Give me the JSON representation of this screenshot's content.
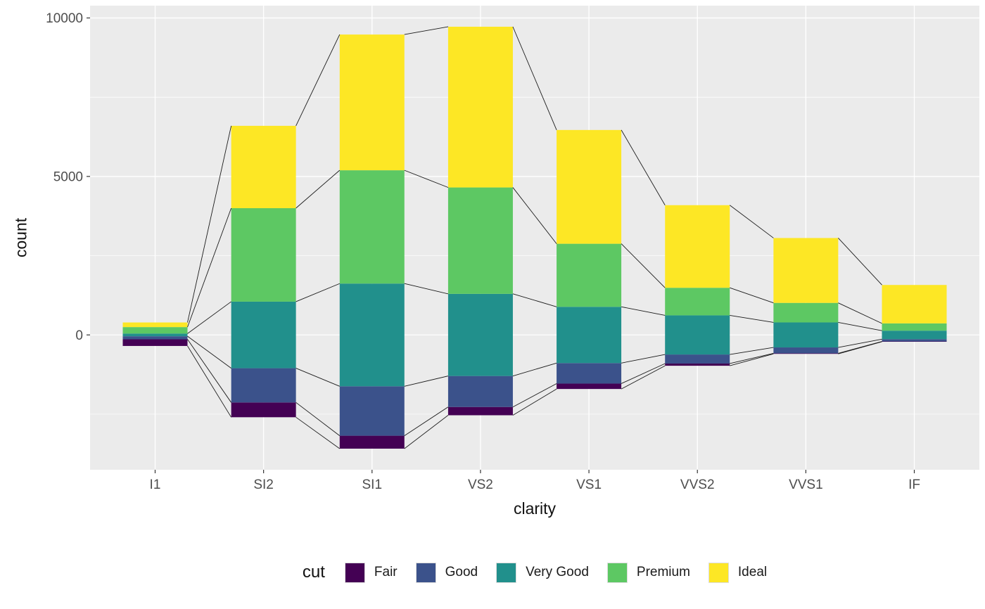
{
  "style": {
    "figure_bg": "#FFFFFF",
    "panel_bg": "#EBEBEB",
    "grid_major": "#FFFFFF",
    "grid_minor": "#FFFFFF",
    "connector_color": "#1A1A1A",
    "tick_mark_color": "#333333",
    "tick_text_color": "#4D4D4D",
    "title_text_color": "#111111"
  },
  "axes": {
    "x": {
      "title": "clarity",
      "tick_labels": [
        "I1",
        "SI2",
        "SI1",
        "VS2",
        "VS1",
        "VVS2",
        "VVS1",
        "IF"
      ]
    },
    "y": {
      "title": "count",
      "tick_labels": [
        "0",
        "5000",
        "10000"
      ],
      "tick_values": [
        0,
        5000,
        10000
      ],
      "minor": [
        -2500,
        2500,
        7500
      ],
      "min": -4254,
      "max": 10389
    }
  },
  "legend": {
    "title": "cut",
    "items": [
      {
        "label": "Fair",
        "color": "#440154"
      },
      {
        "label": "Good",
        "color": "#3B528B"
      },
      {
        "label": "Very Good",
        "color": "#21908C"
      },
      {
        "label": "Premium",
        "color": "#5DC863"
      },
      {
        "label": "Ideal",
        "color": "#FDE725"
      }
    ]
  },
  "chart_data": {
    "type": "bar",
    "variant": "diverging_stacked",
    "title": "",
    "xlabel": "clarity",
    "ylabel": "count",
    "categories": [
      "I1",
      "SI2",
      "SI1",
      "VS2",
      "VS1",
      "VVS2",
      "VVS1",
      "IF"
    ],
    "series": [
      {
        "name": "Fair",
        "color": "#440154",
        "values": [
          210,
          466,
          408,
          261,
          170,
          69,
          17,
          9
        ]
      },
      {
        "name": "Good",
        "color": "#3B528B",
        "values": [
          96,
          1081,
          1560,
          978,
          648,
          286,
          186,
          71
        ]
      },
      {
        "name": "Very Good",
        "color": "#21908C",
        "values": [
          84,
          2100,
          3240,
          2591,
          1775,
          1235,
          789,
          268
        ]
      },
      {
        "name": "Premium",
        "color": "#5DC863",
        "values": [
          205,
          2949,
          3575,
          3357,
          1989,
          870,
          616,
          230
        ]
      },
      {
        "name": "Ideal",
        "color": "#FDE725",
        "values": [
          146,
          2598,
          4282,
          5071,
          3589,
          2606,
          2047,
          1212
        ]
      }
    ],
    "stack_alignment": "middle series (Very Good) centered at 0",
    "connectors": "thin black lines join corresponding stack boundaries of adjacent bars",
    "ylim": [
      -4254,
      10389
    ],
    "yticks": [
      0,
      5000,
      10000
    ],
    "yticks_minor": [
      -2500,
      2500,
      7500
    ],
    "grid": true,
    "legend_position": "bottom"
  }
}
